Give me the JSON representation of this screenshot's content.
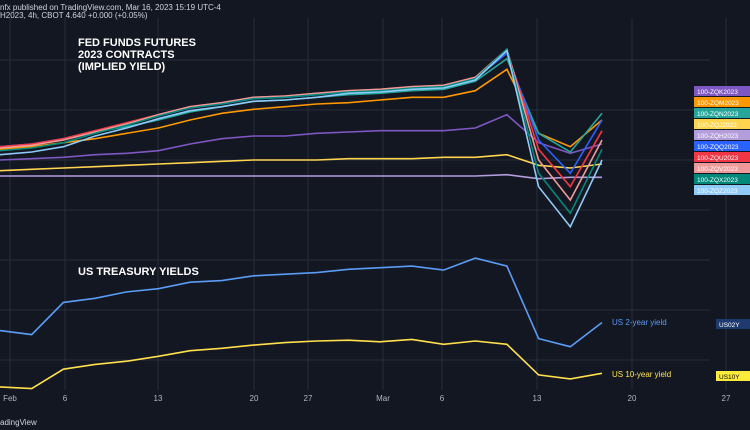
{
  "header": {
    "publisher": "nfx published on TradingView.com, Mar 16, 2023 15:19 UTC-4",
    "symbol_line": "H2023, 4h, CBOT  4.640  +0.000 (+0.05%)"
  },
  "footer": {
    "brand": "adingView"
  },
  "chart_data": [
    {
      "type": "line",
      "title": "FED FUNDS FUTURES\n2023 CONTRACTS\n(IMPLIED YIELD)",
      "x_ticks": [
        "Feb",
        "6",
        "13",
        "20",
        "27",
        "Mar",
        "6",
        "13",
        "20",
        "27"
      ],
      "grid": true,
      "legend": "right",
      "series": [
        {
          "name": "100-ZQK2023",
          "color": "#7e57c2",
          "values": [
            4.7,
            4.71,
            4.72,
            4.74,
            4.75,
            4.77,
            4.82,
            4.86,
            4.88,
            4.88,
            4.9,
            4.91,
            4.92,
            4.92,
            4.92,
            4.94,
            5.04,
            4.83,
            4.75,
            4.82
          ]
        },
        {
          "name": "100-ZQM2023",
          "color": "#ff9800",
          "values": [
            4.78,
            4.8,
            4.83,
            4.86,
            4.9,
            4.94,
            5.0,
            5.05,
            5.08,
            5.1,
            5.12,
            5.13,
            5.15,
            5.17,
            5.17,
            5.22,
            5.38,
            4.9,
            4.8,
            5.0
          ]
        },
        {
          "name": "100-ZQN2023",
          "color": "#26a69a",
          "values": [
            4.8,
            4.82,
            4.86,
            4.91,
            4.95,
            5.0,
            5.06,
            5.1,
            5.14,
            5.15,
            5.17,
            5.19,
            5.2,
            5.22,
            5.23,
            5.29,
            5.46,
            4.9,
            4.76,
            5.05
          ]
        },
        {
          "name": "100-ZQJ2023",
          "color": "#ffd54f",
          "values": [
            4.62,
            4.63,
            4.64,
            4.65,
            4.66,
            4.67,
            4.68,
            4.69,
            4.7,
            4.7,
            4.7,
            4.71,
            4.71,
            4.71,
            4.72,
            4.72,
            4.74,
            4.66,
            4.64,
            4.67
          ]
        },
        {
          "name": "100-ZQH2023",
          "color": "#b39ddb",
          "values": [
            4.58,
            4.58,
            4.58,
            4.58,
            4.58,
            4.58,
            4.58,
            4.58,
            4.58,
            4.58,
            4.58,
            4.58,
            4.58,
            4.58,
            4.58,
            4.58,
            4.59,
            4.56,
            4.57,
            4.57
          ]
        },
        {
          "name": "100-ZQQ2023",
          "color": "#2962ff",
          "values": [
            4.8,
            4.82,
            4.86,
            4.92,
            4.97,
            5.03,
            5.09,
            5.12,
            5.16,
            5.17,
            5.19,
            5.21,
            5.22,
            5.24,
            5.25,
            5.31,
            5.5,
            4.85,
            4.6,
            5.0
          ]
        },
        {
          "name": "100-ZQU2023",
          "color": "#f23645",
          "values": [
            4.8,
            4.82,
            4.86,
            4.92,
            4.98,
            5.04,
            5.1,
            5.13,
            5.17,
            5.18,
            5.2,
            5.22,
            5.23,
            5.25,
            5.26,
            5.32,
            5.52,
            4.78,
            4.5,
            4.92
          ]
        },
        {
          "name": "100-ZQV2023",
          "color": "#ef9a9a",
          "values": [
            4.79,
            4.81,
            4.85,
            4.91,
            4.97,
            5.04,
            5.1,
            5.13,
            5.17,
            5.18,
            5.2,
            5.22,
            5.23,
            5.25,
            5.26,
            5.32,
            5.53,
            4.7,
            4.4,
            4.85
          ]
        },
        {
          "name": "100-ZQX2023",
          "color": "#00897b",
          "values": [
            4.77,
            4.79,
            4.83,
            4.9,
            4.96,
            5.03,
            5.09,
            5.12,
            5.16,
            5.17,
            5.19,
            5.21,
            5.22,
            5.24,
            5.25,
            5.31,
            5.53,
            4.6,
            4.3,
            4.78
          ]
        },
        {
          "name": "100-ZQZ2023",
          "color": "#90caf9",
          "values": [
            4.74,
            4.76,
            4.8,
            4.88,
            4.94,
            5.01,
            5.07,
            5.1,
            5.14,
            5.15,
            5.17,
            5.2,
            5.21,
            5.23,
            5.24,
            5.3,
            5.52,
            4.5,
            4.2,
            4.7
          ]
        }
      ]
    },
    {
      "type": "line",
      "title": "US TREASURY YIELDS",
      "grid": true,
      "series": [
        {
          "name": "US 2-year yield",
          "tag": "US02Y",
          "color": "#5b9cf6",
          "values": [
            4.1,
            4.05,
            4.45,
            4.5,
            4.58,
            4.62,
            4.7,
            4.72,
            4.78,
            4.8,
            4.82,
            4.86,
            4.88,
            4.9,
            4.85,
            5.0,
            4.9,
            4.0,
            3.9,
            4.2
          ]
        },
        {
          "name": "US 10-year yield",
          "tag": "US10Y",
          "color": "#ffe14d",
          "values": [
            3.4,
            3.38,
            3.62,
            3.68,
            3.72,
            3.78,
            3.85,
            3.88,
            3.92,
            3.95,
            3.97,
            3.98,
            3.96,
            3.99,
            3.93,
            3.97,
            3.93,
            3.55,
            3.5,
            3.57
          ]
        }
      ]
    }
  ]
}
